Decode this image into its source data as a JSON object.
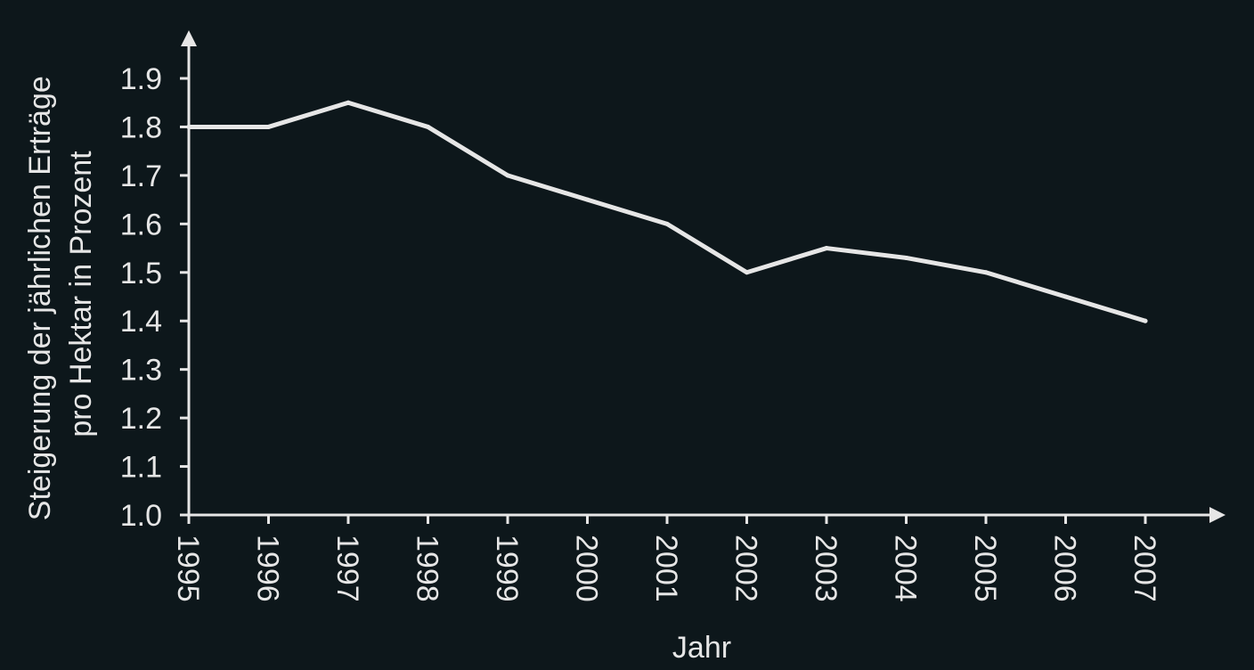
{
  "chart_data": {
    "type": "line",
    "title": "",
    "xlabel": "Jahr",
    "ylabel_lines": [
      "Steigerung der jährlichen Erträge",
      "pro Hektar in Prozent"
    ],
    "x": [
      "1995",
      "1996",
      "1997",
      "1998",
      "1999",
      "2000",
      "2001",
      "2002",
      "2003",
      "2004",
      "2005",
      "2006",
      "2007"
    ],
    "y_ticks": [
      "1.0",
      "1.1",
      "1.2",
      "1.3",
      "1.4",
      "1.5",
      "1.6",
      "1.7",
      "1.8",
      "1.9"
    ],
    "ylim": [
      1.0,
      1.9
    ],
    "series": [
      {
        "values": [
          1.8,
          1.8,
          1.85,
          1.8,
          1.7,
          1.65,
          1.6,
          1.5,
          1.55,
          1.53,
          1.5,
          1.45,
          1.4
        ]
      }
    ],
    "grid": false,
    "legend": "none",
    "colors": {
      "background": "#0d171b",
      "axis": "#e6e6e6",
      "line": "#e6e6e6"
    }
  }
}
